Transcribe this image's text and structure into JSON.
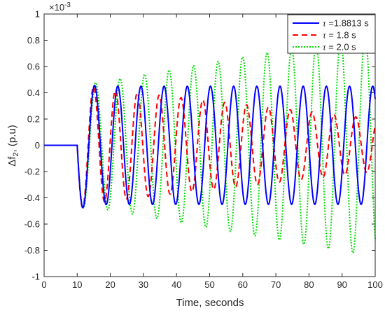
{
  "chart_data": {
    "type": "line",
    "title": "",
    "xlabel": "Time, seconds",
    "ylabel_main": "Δf",
    "ylabel_sub": "2",
    "ylabel_suffix": ", (p.u)",
    "exponent_label": "×10",
    "exponent_power": "-3",
    "xlim": [
      0,
      100
    ],
    "ylim": [
      -1,
      1
    ],
    "xticks": [
      0,
      10,
      20,
      30,
      40,
      50,
      60,
      70,
      80,
      90,
      100
    ],
    "xtick_labels": [
      "0",
      "10",
      "20",
      "30",
      "40",
      "50",
      "60",
      "70",
      "80",
      "90",
      "100"
    ],
    "yticks": [
      1,
      0.8,
      0.6,
      0.4,
      0.2,
      0,
      -0.2,
      -0.4,
      -0.6,
      -0.8,
      -1
    ],
    "ytick_labels": [
      "1",
      "0.8",
      "0.6",
      "0.4",
      "0.2",
      "0",
      "-0.2",
      "-0.4",
      "-0.6",
      "-0.8",
      "-1"
    ],
    "grid": false,
    "legend_position": "top-right",
    "disturbance_start": 10,
    "series": [
      {
        "name": "τ =1.8813 s",
        "legend_symbol": "τ",
        "legend_text": " =1.8813 s",
        "color": "#0000ff",
        "style": "solid",
        "period": 7.0,
        "first_trough": -0.5,
        "sustained_amplitude": 0.45,
        "end_amplitude": 0.45,
        "behavior": "sustained oscillation"
      },
      {
        "name": "τ = 1.8 s",
        "legend_symbol": "τ",
        "legend_text": " = 1.8 s",
        "color": "#ff0000",
        "style": "dashed",
        "period": 6.6,
        "first_trough": -0.5,
        "sustained_amplitude": 0.45,
        "end_amplitude": 0.2,
        "behavior": "damped oscillation"
      },
      {
        "name": "τ = 2.0 s",
        "legend_symbol": "τ",
        "legend_text": " = 2.0 s",
        "color": "#00dd00",
        "style": "dotted",
        "period": 7.4,
        "first_trough": -0.5,
        "sustained_amplitude": 0.45,
        "end_amplitude": 0.85,
        "behavior": "growing oscillation"
      }
    ]
  }
}
